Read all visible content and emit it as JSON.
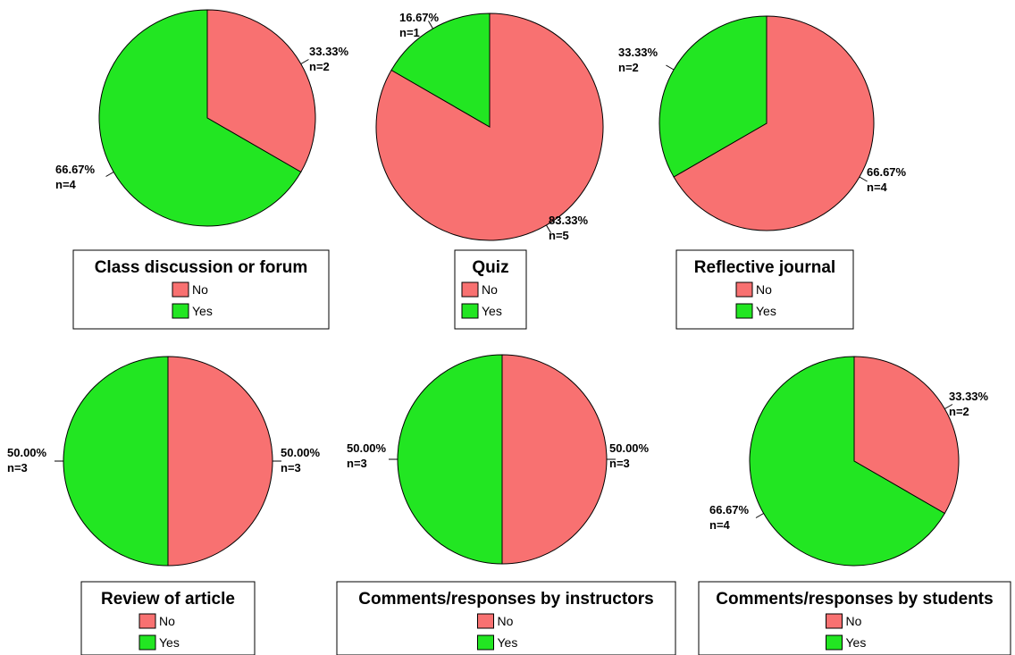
{
  "colors": {
    "No": "#f87171",
    "Yes": "#22e622",
    "outline": "#000000"
  },
  "chart_data": [
    {
      "type": "pie",
      "title": "Class discussion or forum",
      "legend": [
        "No",
        "Yes"
      ],
      "slices": [
        {
          "name": "No",
          "value": 2,
          "percent": "33.33%",
          "count": "n=2"
        },
        {
          "name": "Yes",
          "value": 4,
          "percent": "66.67%",
          "count": "n=4"
        }
      ]
    },
    {
      "type": "pie",
      "title": "Quiz",
      "legend": [
        "No",
        "Yes"
      ],
      "slices": [
        {
          "name": "No",
          "value": 5,
          "percent": "83.33%",
          "count": "n=5"
        },
        {
          "name": "Yes",
          "value": 1,
          "percent": "16.67%",
          "count": "n=1"
        }
      ]
    },
    {
      "type": "pie",
      "title": "Reflective journal",
      "legend": [
        "No",
        "Yes"
      ],
      "slices": [
        {
          "name": "No",
          "value": 4,
          "percent": "66.67%",
          "count": "n=4"
        },
        {
          "name": "Yes",
          "value": 2,
          "percent": "33.33%",
          "count": "n=2"
        }
      ]
    },
    {
      "type": "pie",
      "title": "Review of article",
      "legend": [
        "No",
        "Yes"
      ],
      "slices": [
        {
          "name": "No",
          "value": 3,
          "percent": "50.00%",
          "count": "n=3"
        },
        {
          "name": "Yes",
          "value": 3,
          "percent": "50.00%",
          "count": "n=3"
        }
      ]
    },
    {
      "type": "pie",
      "title": "Comments/responses by instructors",
      "legend": [
        "No",
        "Yes"
      ],
      "slices": [
        {
          "name": "No",
          "value": 3,
          "percent": "50.00%",
          "count": "n=3"
        },
        {
          "name": "Yes",
          "value": 3,
          "percent": "50.00%",
          "count": "n=3"
        }
      ]
    },
    {
      "type": "pie",
      "title": "Comments/responses by students",
      "legend": [
        "No",
        "Yes"
      ],
      "slices": [
        {
          "name": "No",
          "value": 2,
          "percent": "33.33%",
          "count": "n=2"
        },
        {
          "name": "Yes",
          "value": 4,
          "percent": "66.67%",
          "count": "n=4"
        }
      ]
    }
  ]
}
